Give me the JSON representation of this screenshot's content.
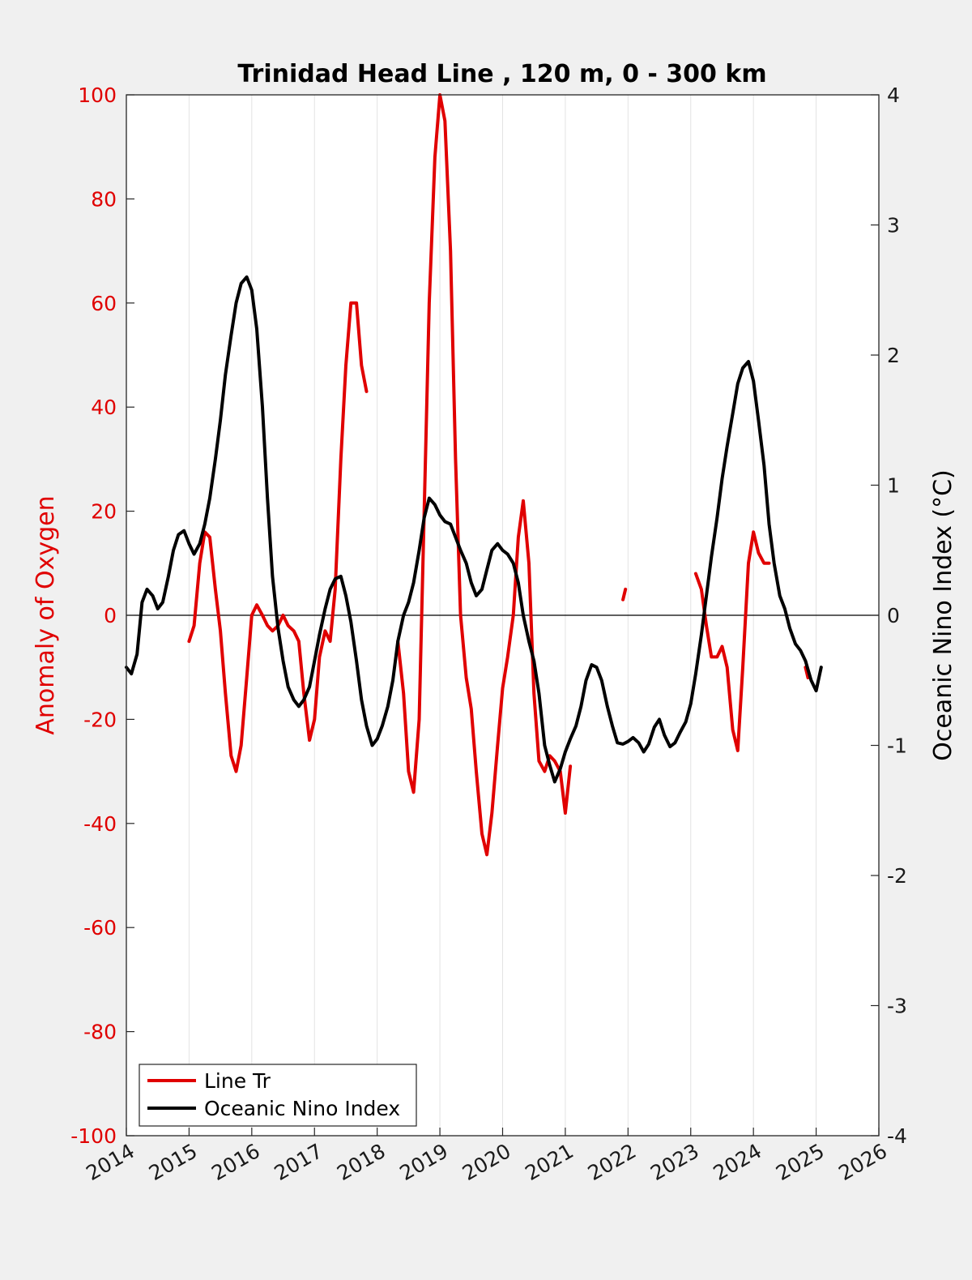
{
  "chart_data": {
    "type": "line",
    "title": "Trinidad Head Line , 120 m, 0 - 300 km",
    "xlabel": "",
    "x_ticks": [
      "2014",
      "2015",
      "2016",
      "2017",
      "2018",
      "2019",
      "2020",
      "2021",
      "2022",
      "2023",
      "2024",
      "2025",
      "2026"
    ],
    "xlim": [
      2014,
      2026
    ],
    "y_left": {
      "label": "Anomaly of Oxygen",
      "lim": [
        -100,
        100
      ],
      "ticks": [
        "100",
        "80",
        "60",
        "40",
        "20",
        "0",
        "-20",
        "-40",
        "-60",
        "-80",
        "-100"
      ],
      "color": "#e00000"
    },
    "y_right": {
      "label": "Oceanic Nino Index (°C)",
      "lim": [
        -4,
        4
      ],
      "ticks": [
        "4",
        "3",
        "2",
        "1",
        "0",
        "-1",
        "-2",
        "-3",
        "-4"
      ],
      "color": "#000000"
    },
    "grid": "vertical",
    "zero_line": true,
    "legend": {
      "placement": "bottom-left",
      "entries": [
        "Line Tr",
        "Oceanic Nino Index"
      ]
    },
    "series": [
      {
        "name": "Line Tr",
        "axis": "left",
        "color": "#e00000",
        "segments": [
          [
            [
              2015.0,
              -5
            ],
            [
              2015.08,
              -2
            ],
            [
              2015.17,
              10
            ],
            [
              2015.25,
              16
            ],
            [
              2015.33,
              15
            ],
            [
              2015.42,
              5
            ],
            [
              2015.5,
              -3
            ],
            [
              2015.58,
              -15
            ],
            [
              2015.67,
              -27
            ],
            [
              2015.75,
              -30
            ],
            [
              2015.83,
              -25
            ],
            [
              2015.92,
              -12
            ],
            [
              2016.0,
              0
            ],
            [
              2016.08,
              2
            ],
            [
              2016.17,
              0
            ],
            [
              2016.25,
              -2
            ],
            [
              2016.33,
              -3
            ],
            [
              2016.42,
              -2
            ],
            [
              2016.5,
              0
            ],
            [
              2016.58,
              -2
            ],
            [
              2016.67,
              -3
            ],
            [
              2016.75,
              -5
            ],
            [
              2016.83,
              -15
            ],
            [
              2016.92,
              -24
            ],
            [
              2017.0,
              -20
            ],
            [
              2017.08,
              -8
            ],
            [
              2017.17,
              -3
            ],
            [
              2017.25,
              -5
            ],
            [
              2017.33,
              5
            ],
            [
              2017.42,
              30
            ],
            [
              2017.5,
              48
            ],
            [
              2017.58,
              60
            ],
            [
              2017.67,
              60
            ],
            [
              2017.75,
              48
            ],
            [
              2017.83,
              43
            ]
          ],
          [
            [
              2018.33,
              -5
            ],
            [
              2018.42,
              -15
            ],
            [
              2018.5,
              -30
            ],
            [
              2018.58,
              -34
            ],
            [
              2018.67,
              -20
            ],
            [
              2018.75,
              20
            ],
            [
              2018.83,
              60
            ],
            [
              2018.92,
              88
            ],
            [
              2019.0,
              100
            ],
            [
              2019.08,
              95
            ],
            [
              2019.17,
              70
            ],
            [
              2019.25,
              30
            ],
            [
              2019.33,
              0
            ],
            [
              2019.42,
              -12
            ],
            [
              2019.5,
              -18
            ],
            [
              2019.58,
              -30
            ],
            [
              2019.67,
              -42
            ],
            [
              2019.75,
              -46
            ],
            [
              2019.83,
              -38
            ],
            [
              2019.92,
              -25
            ],
            [
              2020.0,
              -14
            ],
            [
              2020.08,
              -8
            ],
            [
              2020.17,
              0
            ],
            [
              2020.25,
              15
            ],
            [
              2020.33,
              22
            ],
            [
              2020.42,
              10
            ],
            [
              2020.5,
              -15
            ],
            [
              2020.58,
              -28
            ],
            [
              2020.67,
              -30
            ],
            [
              2020.75,
              -27
            ],
            [
              2020.83,
              -28
            ],
            [
              2020.92,
              -30
            ],
            [
              2021.0,
              -38
            ],
            [
              2021.08,
              -29
            ]
          ],
          [
            [
              2021.92,
              3
            ],
            [
              2021.96,
              5
            ]
          ],
          [
            [
              2023.08,
              8
            ],
            [
              2023.17,
              5
            ],
            [
              2023.25,
              -2
            ],
            [
              2023.33,
              -8
            ],
            [
              2023.42,
              -8
            ],
            [
              2023.5,
              -6
            ],
            [
              2023.58,
              -10
            ],
            [
              2023.67,
              -22
            ],
            [
              2023.75,
              -26
            ],
            [
              2023.83,
              -10
            ],
            [
              2023.92,
              10
            ],
            [
              2024.0,
              16
            ],
            [
              2024.08,
              12
            ],
            [
              2024.17,
              10
            ],
            [
              2024.25,
              10
            ]
          ],
          [
            [
              2024.83,
              -10
            ],
            [
              2024.87,
              -12
            ]
          ]
        ]
      },
      {
        "name": "Oceanic Nino Index",
        "axis": "right",
        "color": "#000000",
        "segments": [
          [
            [
              2014.0,
              -0.4
            ],
            [
              2014.08,
              -0.45
            ],
            [
              2014.17,
              -0.3
            ],
            [
              2014.25,
              0.1
            ],
            [
              2014.33,
              0.2
            ],
            [
              2014.42,
              0.15
            ],
            [
              2014.5,
              0.05
            ],
            [
              2014.58,
              0.1
            ],
            [
              2014.67,
              0.3
            ],
            [
              2014.75,
              0.5
            ],
            [
              2014.83,
              0.62
            ],
            [
              2014.92,
              0.65
            ],
            [
              2015.0,
              0.55
            ],
            [
              2015.08,
              0.47
            ],
            [
              2015.17,
              0.55
            ],
            [
              2015.25,
              0.7
            ],
            [
              2015.33,
              0.9
            ],
            [
              2015.42,
              1.2
            ],
            [
              2015.5,
              1.5
            ],
            [
              2015.58,
              1.85
            ],
            [
              2015.67,
              2.15
            ],
            [
              2015.75,
              2.4
            ],
            [
              2015.83,
              2.55
            ],
            [
              2015.92,
              2.6
            ],
            [
              2016.0,
              2.5
            ],
            [
              2016.08,
              2.2
            ],
            [
              2016.17,
              1.6
            ],
            [
              2016.25,
              0.9
            ],
            [
              2016.33,
              0.3
            ],
            [
              2016.42,
              -0.1
            ],
            [
              2016.5,
              -0.35
            ],
            [
              2016.58,
              -0.55
            ],
            [
              2016.67,
              -0.65
            ],
            [
              2016.75,
              -0.7
            ],
            [
              2016.83,
              -0.65
            ],
            [
              2016.92,
              -0.55
            ],
            [
              2017.0,
              -0.35
            ],
            [
              2017.08,
              -0.15
            ],
            [
              2017.17,
              0.05
            ],
            [
              2017.25,
              0.2
            ],
            [
              2017.33,
              0.28
            ],
            [
              2017.42,
              0.3
            ],
            [
              2017.5,
              0.15
            ],
            [
              2017.58,
              -0.05
            ],
            [
              2017.67,
              -0.35
            ],
            [
              2017.75,
              -0.65
            ],
            [
              2017.83,
              -0.85
            ],
            [
              2017.92,
              -1.0
            ],
            [
              2018.0,
              -0.95
            ],
            [
              2018.08,
              -0.85
            ],
            [
              2018.17,
              -0.7
            ],
            [
              2018.25,
              -0.5
            ],
            [
              2018.33,
              -0.2
            ],
            [
              2018.42,
              0.0
            ],
            [
              2018.5,
              0.1
            ],
            [
              2018.58,
              0.25
            ],
            [
              2018.67,
              0.5
            ],
            [
              2018.75,
              0.75
            ],
            [
              2018.83,
              0.9
            ],
            [
              2018.92,
              0.85
            ],
            [
              2019.0,
              0.77
            ],
            [
              2019.08,
              0.72
            ],
            [
              2019.17,
              0.7
            ],
            [
              2019.25,
              0.6
            ],
            [
              2019.33,
              0.5
            ],
            [
              2019.42,
              0.4
            ],
            [
              2019.5,
              0.25
            ],
            [
              2019.58,
              0.15
            ],
            [
              2019.67,
              0.2
            ],
            [
              2019.75,
              0.35
            ],
            [
              2019.83,
              0.5
            ],
            [
              2019.92,
              0.55
            ],
            [
              2020.0,
              0.5
            ],
            [
              2020.08,
              0.47
            ],
            [
              2020.17,
              0.4
            ],
            [
              2020.25,
              0.25
            ],
            [
              2020.33,
              0.0
            ],
            [
              2020.42,
              -0.2
            ],
            [
              2020.5,
              -0.35
            ],
            [
              2020.58,
              -0.6
            ],
            [
              2020.67,
              -1.0
            ],
            [
              2020.75,
              -1.15
            ],
            [
              2020.83,
              -1.28
            ],
            [
              2020.92,
              -1.18
            ],
            [
              2021.0,
              -1.05
            ],
            [
              2021.08,
              -0.95
            ],
            [
              2021.17,
              -0.85
            ],
            [
              2021.25,
              -0.7
            ],
            [
              2021.33,
              -0.5
            ],
            [
              2021.42,
              -0.38
            ],
            [
              2021.5,
              -0.4
            ],
            [
              2021.58,
              -0.5
            ],
            [
              2021.67,
              -0.7
            ],
            [
              2021.75,
              -0.85
            ],
            [
              2021.83,
              -0.98
            ],
            [
              2021.92,
              -0.99
            ],
            [
              2022.0,
              -0.97
            ],
            [
              2022.08,
              -0.94
            ],
            [
              2022.17,
              -0.98
            ],
            [
              2022.25,
              -1.05
            ],
            [
              2022.33,
              -0.99
            ],
            [
              2022.42,
              -0.86
            ],
            [
              2022.5,
              -0.8
            ],
            [
              2022.58,
              -0.92
            ],
            [
              2022.67,
              -1.01
            ],
            [
              2022.75,
              -0.98
            ],
            [
              2022.83,
              -0.9
            ],
            [
              2022.92,
              -0.82
            ],
            [
              2023.0,
              -0.68
            ],
            [
              2023.08,
              -0.45
            ],
            [
              2023.17,
              -0.15
            ],
            [
              2023.25,
              0.15
            ],
            [
              2023.33,
              0.45
            ],
            [
              2023.42,
              0.75
            ],
            [
              2023.5,
              1.05
            ],
            [
              2023.58,
              1.3
            ],
            [
              2023.67,
              1.55
            ],
            [
              2023.75,
              1.78
            ],
            [
              2023.83,
              1.9
            ],
            [
              2023.92,
              1.95
            ],
            [
              2024.0,
              1.8
            ],
            [
              2024.08,
              1.5
            ],
            [
              2024.17,
              1.15
            ],
            [
              2024.25,
              0.7
            ],
            [
              2024.33,
              0.4
            ],
            [
              2024.42,
              0.15
            ],
            [
              2024.5,
              0.05
            ],
            [
              2024.58,
              -0.1
            ],
            [
              2024.67,
              -0.22
            ],
            [
              2024.75,
              -0.27
            ],
            [
              2024.83,
              -0.35
            ],
            [
              2024.92,
              -0.5
            ],
            [
              2025.0,
              -0.58
            ],
            [
              2025.08,
              -0.4
            ]
          ]
        ]
      }
    ]
  }
}
